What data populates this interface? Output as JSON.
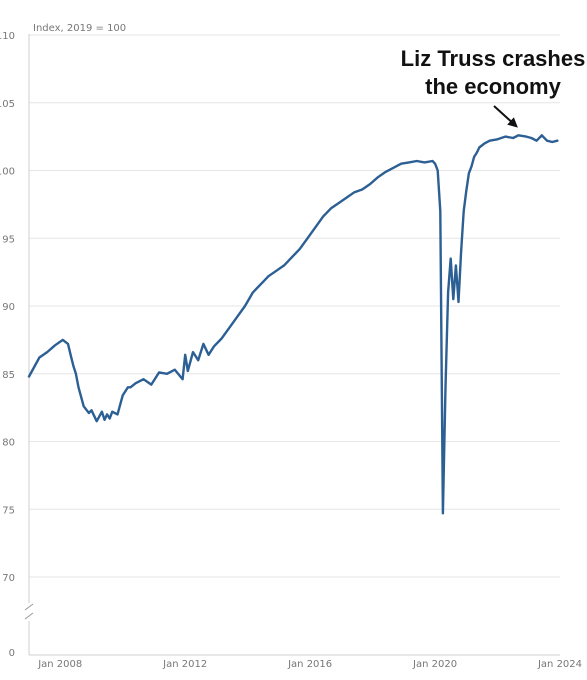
{
  "chart_data": {
    "type": "line",
    "ylabel": "Index, 2019 = 100",
    "ylim": [
      70,
      110
    ],
    "yticks": [
      "110",
      "105",
      "100",
      "95",
      "90",
      "85",
      "80",
      "75",
      "70",
      "0"
    ],
    "ytick_values": [
      110,
      105,
      100,
      95,
      90,
      85,
      80,
      75,
      70,
      0
    ],
    "axis_break": true,
    "xlim": [
      "2007-01",
      "2024-01"
    ],
    "xtick_labels": [
      "Jan 2008",
      "Jan 2012",
      "Jan 2016",
      "Jan 2020",
      "Jan 2024"
    ],
    "xtick_dates": [
      "2008-01",
      "2012-01",
      "2016-01",
      "2020-01",
      "2024-01"
    ],
    "grid": true,
    "annotation": {
      "lines": [
        "Liz Truss crashes",
        "the economy"
      ],
      "points_to": [
        "2022-09",
        102.6
      ]
    },
    "colors": {
      "line": "#2c5f93",
      "grid": "#e6e6e6",
      "axis": "#cfcfcf",
      "text": "#111111"
    },
    "series": [
      {
        "x": [
          "2007-01",
          "2007-03",
          "2007-05",
          "2007-08",
          "2007-11",
          "2008-02",
          "2008-04",
          "2008-05",
          "2008-06",
          "2008-07",
          "2008-08",
          "2008-10",
          "2008-12",
          "2009-01",
          "2009-03",
          "2009-05",
          "2009-06",
          "2009-07",
          "2009-08",
          "2009-09",
          "2009-11",
          "2010-01",
          "2010-03",
          "2010-04",
          "2010-06",
          "2010-09",
          "2010-12",
          "2011-03",
          "2011-06",
          "2011-09",
          "2011-12",
          "2012-01",
          "2012-02",
          "2012-04",
          "2012-06",
          "2012-08",
          "2012-10",
          "2012-12",
          "2013-03",
          "2013-06",
          "2013-09",
          "2013-12",
          "2014-03",
          "2014-06",
          "2014-09",
          "2014-12",
          "2015-03",
          "2015-06",
          "2015-09",
          "2015-12",
          "2016-03",
          "2016-06",
          "2016-09",
          "2016-12",
          "2017-03",
          "2017-06",
          "2017-09",
          "2017-12",
          "2018-03",
          "2018-06",
          "2018-09",
          "2018-12",
          "2019-03",
          "2019-06",
          "2019-09",
          "2019-12",
          "2020-01",
          "2020-02",
          "2020-03",
          "2020-04",
          "2020-05",
          "2020-06",
          "2020-07",
          "2020-08",
          "2020-09",
          "2020-10",
          "2020-11",
          "2020-12",
          "2021-01",
          "2021-02",
          "2021-03",
          "2021-04",
          "2021-05",
          "2021-06",
          "2021-08",
          "2021-10",
          "2022-01",
          "2022-04",
          "2022-07",
          "2022-09",
          "2022-12",
          "2023-02",
          "2023-04",
          "2023-06",
          "2023-08",
          "2023-10",
          "2023-12"
        ],
        "values": [
          84.8,
          85.5,
          86.2,
          86.6,
          87.1,
          87.5,
          87.2,
          86.4,
          85.6,
          85.0,
          84.0,
          82.6,
          82.1,
          82.3,
          81.5,
          82.2,
          81.6,
          82.0,
          81.7,
          82.2,
          82.0,
          83.4,
          84.0,
          84.0,
          84.3,
          84.6,
          84.2,
          85.1,
          85.0,
          85.3,
          84.6,
          86.4,
          85.2,
          86.6,
          86.0,
          87.2,
          86.4,
          87.0,
          87.6,
          88.4,
          89.2,
          90.0,
          91.0,
          91.6,
          92.2,
          92.6,
          93.0,
          93.6,
          94.2,
          95.0,
          95.8,
          96.6,
          97.2,
          97.6,
          98.0,
          98.4,
          98.6,
          99.0,
          99.5,
          99.9,
          100.2,
          100.5,
          100.6,
          100.7,
          100.6,
          100.7,
          100.5,
          100.0,
          97.0,
          74.7,
          84.0,
          91.0,
          93.5,
          90.5,
          93.0,
          90.3,
          94.0,
          97.0,
          98.5,
          99.8,
          100.3,
          101.0,
          101.3,
          101.7,
          102.0,
          102.2,
          102.3,
          102.5,
          102.4,
          102.6,
          102.5,
          102.4,
          102.2,
          102.6,
          102.2,
          102.1,
          102.2
        ]
      }
    ]
  }
}
